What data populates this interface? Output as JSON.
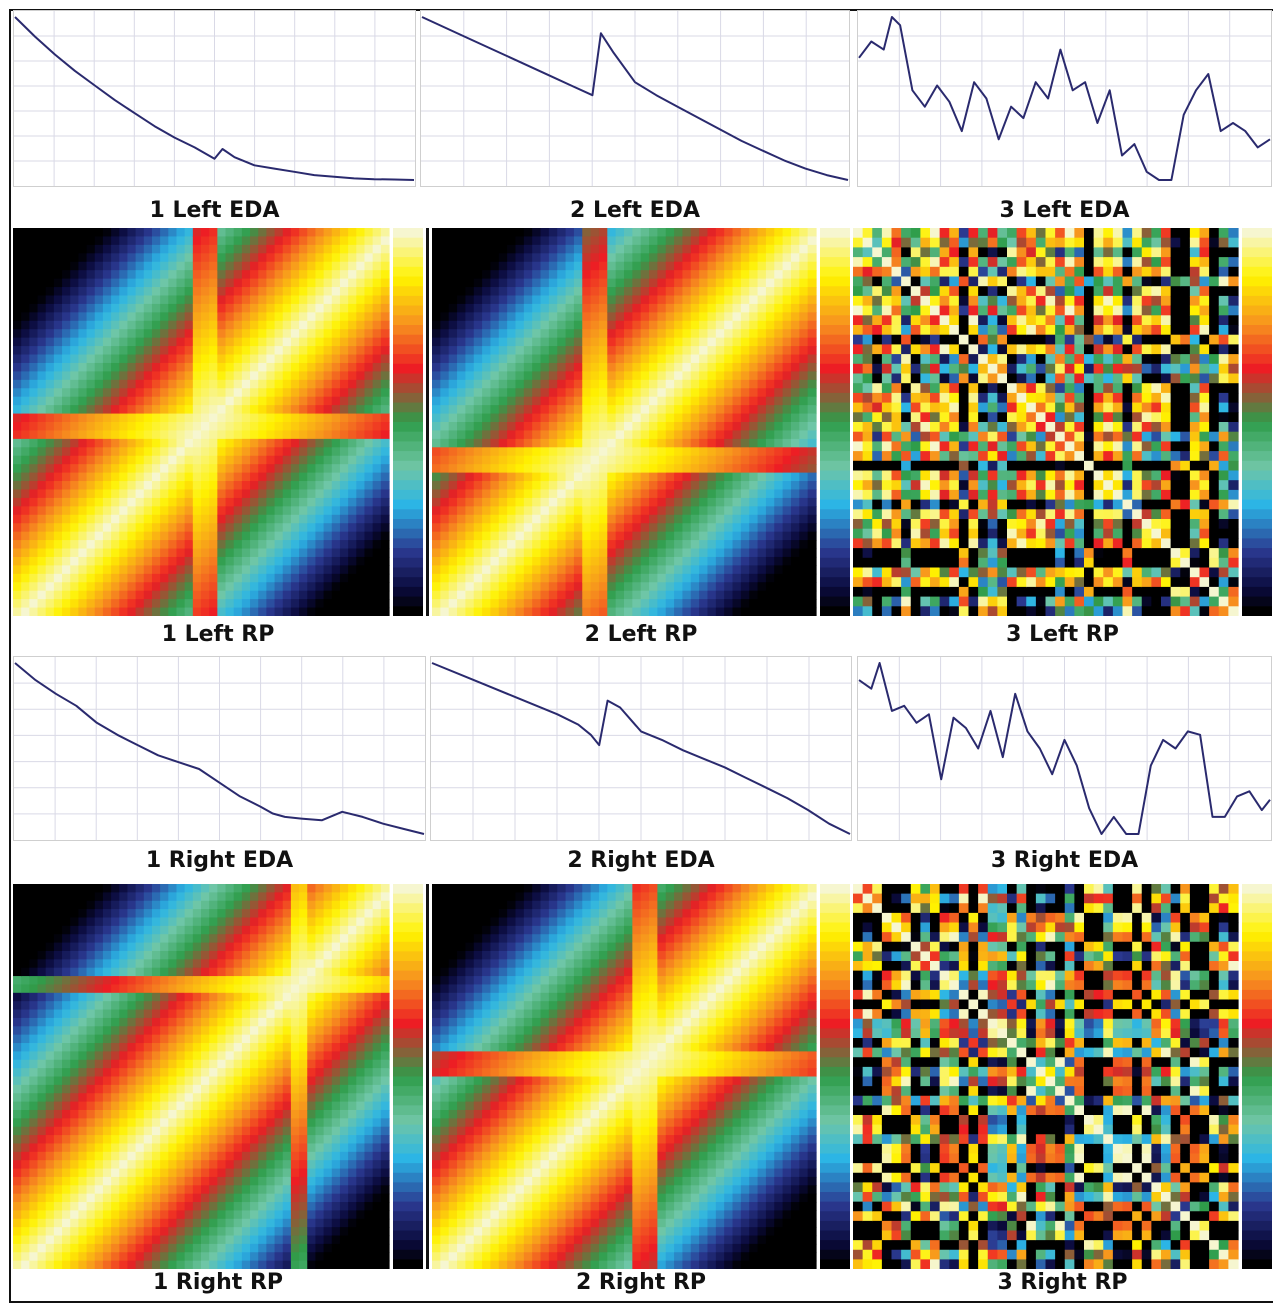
{
  "captions": {
    "left_eda": [
      "1 Left EDA",
      "2 Left EDA",
      "3 Left EDA"
    ],
    "left_rp": [
      "1 Left RP",
      "2 Left RP",
      "3 Left RP"
    ],
    "right_eda": [
      "1 Right EDA",
      "2 Right EDA",
      "3 Right EDA"
    ],
    "right_rp": [
      "1 Right RP",
      "2 Right RP",
      "3 Right RP"
    ]
  },
  "colors": {
    "eda_line": "#2a2a6e",
    "grid": "#d9d9e6",
    "colorbar": [
      "#f6f6d0",
      "#fff200",
      "#f7931e",
      "#ed1c24",
      "#2e9d4a",
      "#6fc6a6",
      "#2bb5e6",
      "#2b3990",
      "#0b0b3d",
      "#000000"
    ]
  },
  "chart_data": [
    {
      "name": "1 Left EDA",
      "type": "line",
      "x": [
        0,
        5,
        10,
        15,
        20,
        25,
        30,
        35,
        40,
        45,
        50,
        52,
        55,
        60,
        65,
        70,
        75,
        80,
        85,
        90,
        95,
        100
      ],
      "y": [
        100,
        88,
        77,
        67,
        58,
        49,
        41,
        33,
        26,
        20,
        13,
        19,
        14,
        9,
        7,
        5,
        3,
        2,
        1,
        0.5,
        0.3,
        0
      ]
    },
    {
      "name": "2 Left EDA",
      "type": "line",
      "x": [
        0,
        10,
        20,
        30,
        35,
        40,
        42,
        45,
        50,
        55,
        60,
        65,
        70,
        75,
        80,
        85,
        90,
        95,
        100
      ],
      "y": [
        100,
        88,
        76,
        64,
        58,
        52,
        90,
        78,
        60,
        52,
        45,
        38,
        31,
        24,
        18,
        12,
        7,
        3,
        0
      ]
    },
    {
      "name": "3 Left EDA",
      "type": "line",
      "x": [
        0,
        3,
        6,
        8,
        10,
        13,
        16,
        19,
        22,
        25,
        28,
        31,
        34,
        37,
        40,
        43,
        46,
        49,
        52,
        55,
        58,
        61,
        64,
        67,
        70,
        73,
        76,
        79,
        82,
        85,
        88,
        91,
        94,
        97,
        100
      ],
      "y": [
        75,
        85,
        80,
        100,
        95,
        55,
        45,
        58,
        48,
        30,
        60,
        50,
        25,
        45,
        38,
        60,
        50,
        80,
        55,
        60,
        35,
        55,
        15,
        22,
        5,
        0,
        0,
        40,
        55,
        65,
        30,
        35,
        30,
        20,
        25
      ]
    },
    {
      "name": "1 Right EDA",
      "type": "line",
      "x": [
        0,
        5,
        10,
        15,
        20,
        25,
        30,
        35,
        40,
        45,
        50,
        55,
        60,
        63,
        66,
        70,
        75,
        80,
        85,
        90,
        95,
        100
      ],
      "y": [
        100,
        90,
        82,
        75,
        65,
        58,
        52,
        46,
        42,
        38,
        30,
        22,
        16,
        12,
        10,
        9,
        8,
        13,
        10,
        6,
        3,
        0
      ]
    },
    {
      "name": "2 Right EDA",
      "type": "line",
      "x": [
        0,
        10,
        20,
        30,
        35,
        38,
        40,
        42,
        45,
        50,
        55,
        60,
        65,
        70,
        75,
        80,
        85,
        90,
        95,
        100
      ],
      "y": [
        100,
        90,
        80,
        70,
        64,
        58,
        52,
        78,
        74,
        60,
        55,
        49,
        44,
        39,
        33,
        27,
        21,
        14,
        6,
        0
      ]
    },
    {
      "name": "3 Right EDA",
      "type": "line",
      "x": [
        0,
        3,
        5,
        8,
        11,
        14,
        17,
        20,
        23,
        26,
        29,
        32,
        35,
        38,
        41,
        44,
        47,
        50,
        53,
        56,
        59,
        62,
        65,
        68,
        71,
        74,
        77,
        80,
        83,
        86,
        89,
        92,
        95,
        98,
        100
      ],
      "y": [
        90,
        85,
        100,
        72,
        75,
        65,
        70,
        32,
        68,
        62,
        50,
        72,
        45,
        82,
        60,
        50,
        35,
        55,
        40,
        15,
        0,
        10,
        0,
        0,
        40,
        55,
        50,
        60,
        58,
        10,
        10,
        22,
        25,
        14,
        20
      ]
    },
    {
      "name": "1 Left RP",
      "type": "heatmap",
      "pattern": "diagonal bands with cross at mid-point"
    },
    {
      "name": "2 Left RP",
      "type": "heatmap",
      "pattern": "diagonal bands with cross at mid-point"
    },
    {
      "name": "3 Left RP",
      "type": "heatmap",
      "pattern": "checkerboard blocks"
    },
    {
      "name": "1 Right RP",
      "type": "heatmap",
      "pattern": "diagonal bands"
    },
    {
      "name": "2 Right RP",
      "type": "heatmap",
      "pattern": "diagonal bands with cross at mid-point"
    },
    {
      "name": "3 Right RP",
      "type": "heatmap",
      "pattern": "checkerboard blocks"
    }
  ]
}
